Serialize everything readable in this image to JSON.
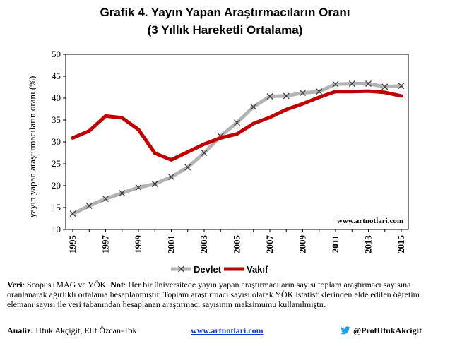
{
  "title": "Grafik 4. Yayın Yapan Araştırmacıların Oranı",
  "subtitle": "(3 Yıllık Hareketli Ortalama)",
  "watermark": "www.artnotlari.com",
  "chart_data": {
    "type": "line",
    "title": "Grafik 4. Yayın Yapan Araştırmacıların Oranı",
    "subtitle": "(3 Yıllık Hareketli Ortalama)",
    "ylabel": "yayın yapan araştırmacıların oranı (%)",
    "xlabel": "",
    "x": [
      1995,
      1996,
      1997,
      1998,
      1999,
      2000,
      2001,
      2002,
      2003,
      2004,
      2005,
      2006,
      2007,
      2008,
      2009,
      2010,
      2011,
      2012,
      2013,
      2014,
      2015
    ],
    "xticks": [
      "1995",
      "1997",
      "1999",
      "2001",
      "2003",
      "2005",
      "2007",
      "2009",
      "2011",
      "2013",
      "2015"
    ],
    "yticks": [
      "10",
      "15",
      "20",
      "25",
      "30",
      "35",
      "40",
      "45",
      "50"
    ],
    "ylim": [
      10,
      50
    ],
    "grid": false,
    "legend_position": "bottom",
    "series": [
      {
        "name": "Devlet",
        "color": "#b3b3b3",
        "marker": "x",
        "values": [
          13.6,
          15.4,
          17.0,
          18.3,
          19.6,
          20.4,
          22.0,
          24.2,
          27.5,
          31.3,
          34.4,
          38.0,
          40.4,
          40.5,
          41.2,
          41.5,
          43.2,
          43.3,
          43.3,
          42.6,
          42.8
        ]
      },
      {
        "name": "Vakıf",
        "color": "#c00000",
        "marker": "none",
        "values": [
          30.9,
          32.5,
          35.9,
          35.5,
          32.8,
          27.4,
          25.9,
          27.7,
          29.5,
          30.9,
          31.8,
          34.2,
          35.6,
          37.4,
          38.7,
          40.2,
          41.5,
          41.5,
          41.6,
          41.3,
          40.5
        ]
      }
    ]
  },
  "footnote": {
    "veri_label": "Veri",
    "veri_text": ": Scopus+MAG ve YÖK. ",
    "not_label": "Not",
    "not_text": ": Her bir üniversitede yayın yapan araştırmacıların sayısı toplam araştırmacı sayısına oranlanarak ağırlıklı ortalama hesaplanmıştır. Toplam araştırmacı sayısı olarak YÖK istatistiklerinden elde edilen öğretim elemanı sayısı ile veri tabanından hesaplanan araştırmacı sayısının maksimumu kullanılmıştır."
  },
  "bottom": {
    "analiz_label": "Analiz:",
    "analiz_text": " Ufuk Akçiğit, Elif Özcan-Tok",
    "link": "www.artnotlari.com",
    "twitter_handle": "@ProfUfukAkcigit",
    "twitter_icon": "twitter-bird-icon",
    "twitter_color": "#1da1f2"
  }
}
